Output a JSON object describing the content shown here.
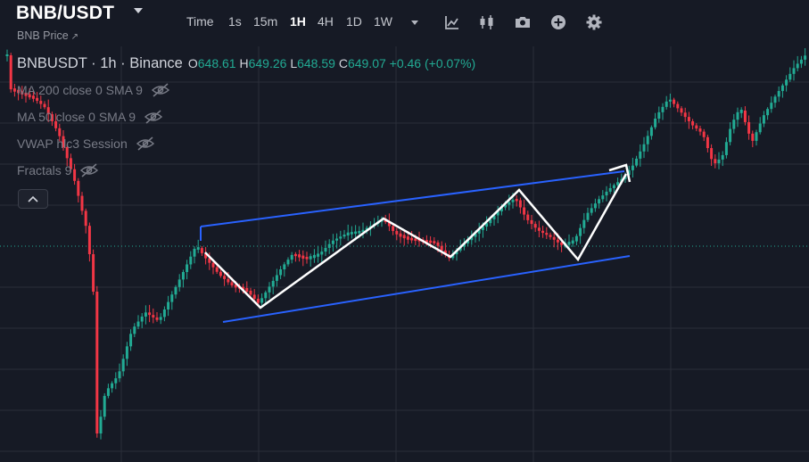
{
  "header": {
    "symbol": "BNB/USDT",
    "subtitle": "BNB Price",
    "subtitle_arrow": "↗",
    "intervals": [
      {
        "label": "Time",
        "active": false
      },
      {
        "label": "1s",
        "active": false
      },
      {
        "label": "15m",
        "active": false
      },
      {
        "label": "1H",
        "active": true
      },
      {
        "label": "4H",
        "active": false
      },
      {
        "label": "1D",
        "active": false
      },
      {
        "label": "1W",
        "active": false
      }
    ],
    "tools": [
      "indicators-icon",
      "candle-style-icon",
      "camera-icon",
      "add-icon",
      "settings-icon"
    ]
  },
  "legend": {
    "title": "BNBUSDT · 1h · Binance",
    "o_label": "O",
    "o": "648.61",
    "h_label": "H",
    "h": "649.26",
    "l_label": "L",
    "l": "648.59",
    "c_label": "C",
    "c": "649.07",
    "change": "+0.46 (+0.07%)"
  },
  "indicators": [
    {
      "label": "MA 200 close 0 SMA 9"
    },
    {
      "label": "MA 50 close 0 SMA 9"
    },
    {
      "label": "VWAP hlc3 Session"
    },
    {
      "label": "Fractals 9"
    }
  ],
  "colors": {
    "background": "#161a25",
    "grid": "#2a2e39",
    "up": "#22ab94",
    "down": "#f23645",
    "channel": "#2962ff",
    "path": "#ffffff",
    "price_line": "#22ab94"
  },
  "chart_data": {
    "type": "candlestick",
    "symbol": "BNBUSDT",
    "interval": "1h",
    "exchange": "Binance",
    "last_ohlc": {
      "open": 648.61,
      "high": 649.26,
      "low": 648.59,
      "close": 649.07
    },
    "current_price_line": true,
    "grid": true,
    "annotations": [
      {
        "type": "ascending-channel"
      },
      {
        "type": "zigzag-path-with-arrow"
      }
    ]
  }
}
